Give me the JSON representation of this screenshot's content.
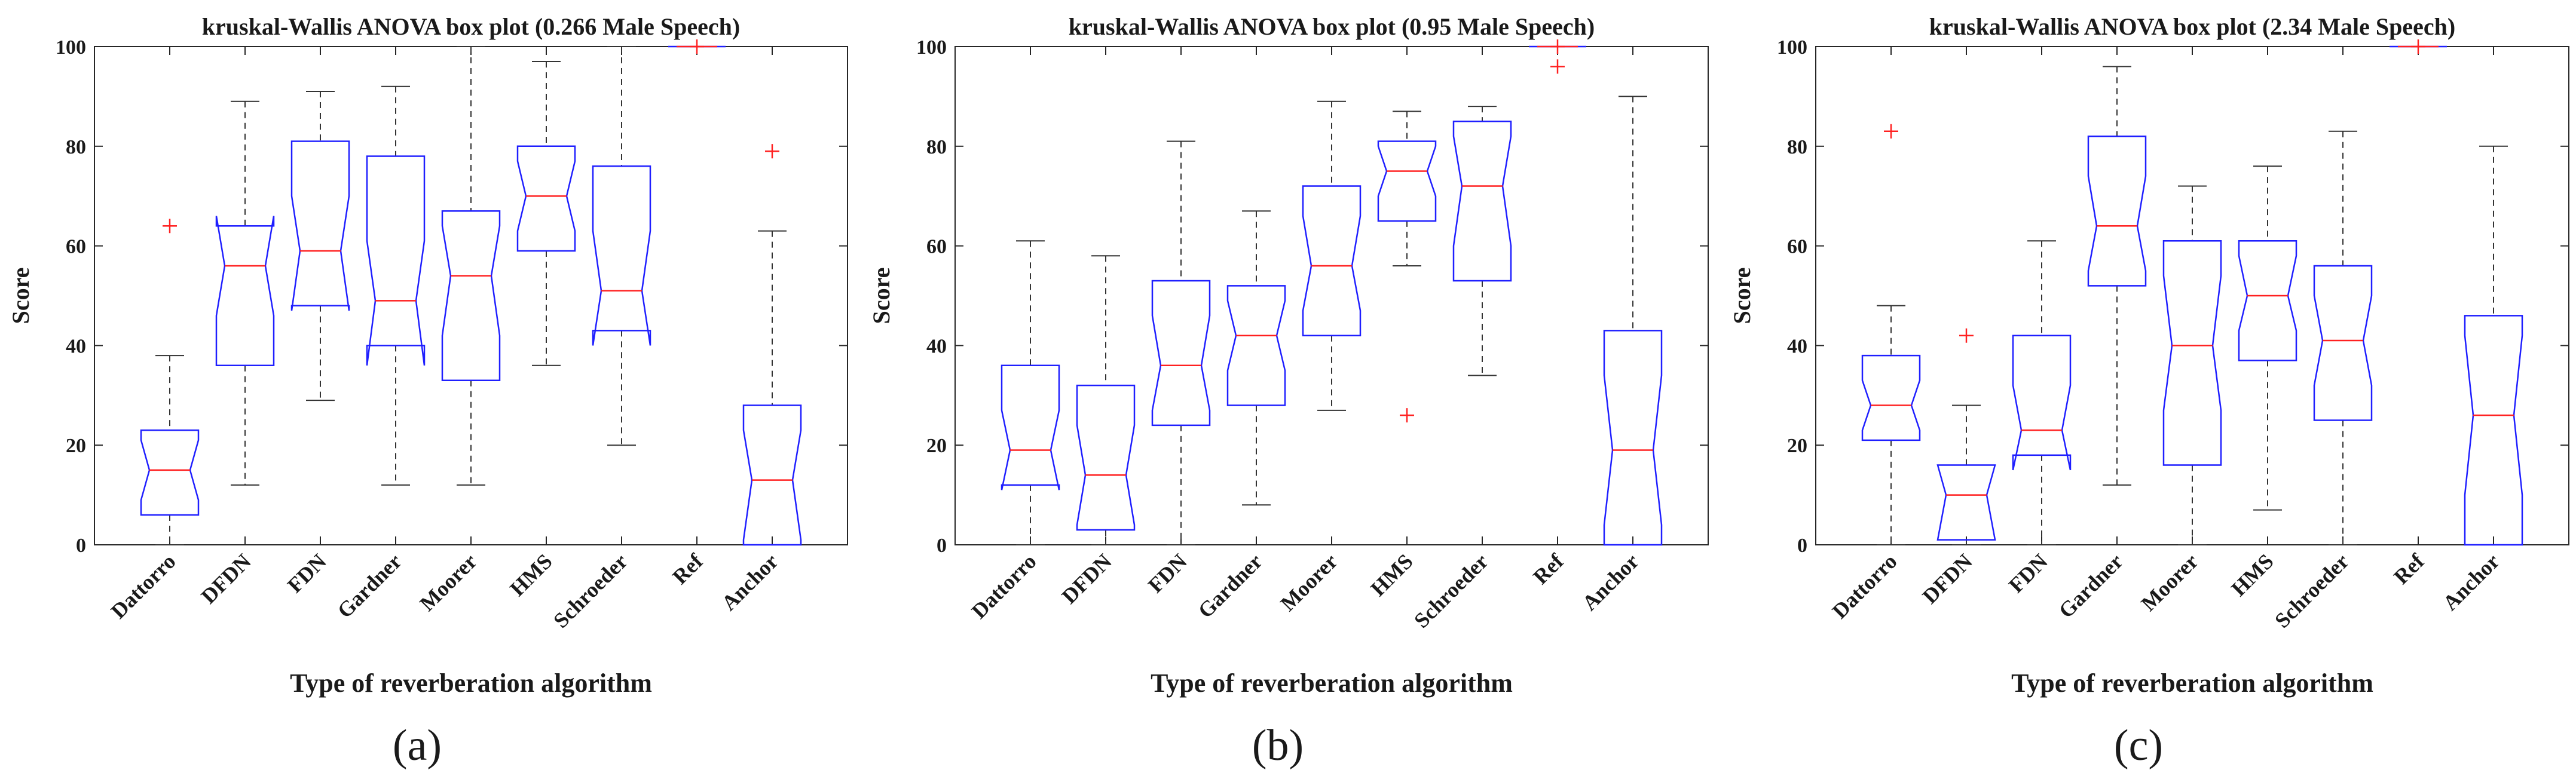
{
  "chart_data": [
    {
      "type": "box",
      "panel_label": "(a)",
      "title": "kruskal-Wallis ANOVA box plot (0.266 Male Speech)",
      "xlabel": "Type of reverberation algorithm",
      "ylabel": "Score",
      "ylim": [
        0,
        100
      ],
      "yticks": [
        "0",
        "20",
        "40",
        "60",
        "80",
        "100"
      ],
      "categories": [
        "Dattorro",
        "DFDN",
        "FDN",
        "Gardner",
        "Moorer",
        "HMS",
        "Schroeder",
        "Ref",
        "Anchor"
      ],
      "boxes": [
        {
          "whisker_low": 0,
          "q1": 6,
          "median": 15,
          "q3": 23,
          "whisker_high": 38,
          "notch_low": 9,
          "notch_high": 21,
          "outliers": [
            64
          ]
        },
        {
          "whisker_low": 12,
          "q1": 36,
          "median": 56,
          "q3": 64,
          "whisker_high": 89,
          "notch_low": 46,
          "notch_high": 66,
          "outliers": []
        },
        {
          "whisker_low": 29,
          "q1": 48,
          "median": 59,
          "q3": 81,
          "whisker_high": 91,
          "notch_low": 47,
          "notch_high": 70,
          "outliers": []
        },
        {
          "whisker_low": 12,
          "q1": 40,
          "median": 49,
          "q3": 78,
          "whisker_high": 92,
          "notch_low": 36,
          "notch_high": 61,
          "outliers": []
        },
        {
          "whisker_low": 12,
          "q1": 33,
          "median": 54,
          "q3": 67,
          "whisker_high": 100,
          "notch_low": 42,
          "notch_high": 64,
          "outliers": []
        },
        {
          "whisker_low": 36,
          "q1": 59,
          "median": 70,
          "q3": 80,
          "whisker_high": 97,
          "notch_low": 63,
          "notch_high": 77,
          "outliers": []
        },
        {
          "whisker_low": 20,
          "q1": 43,
          "median": 51,
          "q3": 76,
          "whisker_high": 100,
          "notch_low": 40,
          "notch_high": 63,
          "outliers": []
        },
        {
          "whisker_low": 100,
          "q1": 100,
          "median": 100,
          "q3": 100,
          "whisker_high": 100,
          "notch_low": 100,
          "notch_high": 100,
          "outliers": [
            100
          ]
        },
        {
          "whisker_low": 0,
          "q1": 0,
          "median": 13,
          "q3": 28,
          "whisker_high": 63,
          "notch_low": 1,
          "notch_high": 23,
          "outliers": [
            79
          ]
        }
      ]
    },
    {
      "type": "box",
      "panel_label": "(b)",
      "title": "kruskal-Wallis ANOVA box plot (0.95 Male Speech)",
      "xlabel": "Type of reverberation algorithm",
      "ylabel": "Score",
      "ylim": [
        0,
        100
      ],
      "yticks": [
        "0",
        "20",
        "40",
        "60",
        "80",
        "100"
      ],
      "categories": [
        "Dattorro",
        "DFDN",
        "FDN",
        "Gardner",
        "Moorer",
        "HMS",
        "Schroeder",
        "Ref",
        "Anchor"
      ],
      "boxes": [
        {
          "whisker_low": 0,
          "q1": 12,
          "median": 19,
          "q3": 36,
          "whisker_high": 61,
          "notch_low": 11,
          "notch_high": 27,
          "outliers": []
        },
        {
          "whisker_low": 0,
          "q1": 3,
          "median": 14,
          "q3": 32,
          "whisker_high": 58,
          "notch_low": 4,
          "notch_high": 24,
          "outliers": []
        },
        {
          "whisker_low": 0,
          "q1": 24,
          "median": 36,
          "q3": 53,
          "whisker_high": 81,
          "notch_low": 27,
          "notch_high": 46,
          "outliers": []
        },
        {
          "whisker_low": 8,
          "q1": 28,
          "median": 42,
          "q3": 52,
          "whisker_high": 67,
          "notch_low": 35,
          "notch_high": 49,
          "outliers": []
        },
        {
          "whisker_low": 27,
          "q1": 42,
          "median": 56,
          "q3": 72,
          "whisker_high": 89,
          "notch_low": 47,
          "notch_high": 66,
          "outliers": []
        },
        {
          "whisker_low": 56,
          "q1": 65,
          "median": 75,
          "q3": 81,
          "whisker_high": 87,
          "notch_low": 70,
          "notch_high": 80,
          "outliers": [
            26
          ]
        },
        {
          "whisker_low": 34,
          "q1": 53,
          "median": 72,
          "q3": 85,
          "whisker_high": 88,
          "notch_low": 60,
          "notch_high": 82,
          "outliers": []
        },
        {
          "whisker_low": 100,
          "q1": 100,
          "median": 100,
          "q3": 100,
          "whisker_high": 100,
          "notch_low": 100,
          "notch_high": 100,
          "outliers": [
            96,
            100
          ]
        },
        {
          "whisker_low": 0,
          "q1": 0,
          "median": 19,
          "q3": 43,
          "whisker_high": 90,
          "notch_low": 4,
          "notch_high": 34,
          "outliers": []
        }
      ]
    },
    {
      "type": "box",
      "panel_label": "(c)",
      "title": "kruskal-Wallis ANOVA box plot (2.34 Male Speech)",
      "xlabel": "Type of reverberation algorithm",
      "ylabel": "Score",
      "ylim": [
        0,
        100
      ],
      "yticks": [
        "0",
        "20",
        "40",
        "60",
        "80",
        "100"
      ],
      "categories": [
        "Dattorro",
        "DFDN",
        "FDN",
        "Gardner",
        "Moorer",
        "HMS",
        "Schroeder",
        "Ref",
        "Anchor"
      ],
      "boxes": [
        {
          "whisker_low": 0,
          "q1": 21,
          "median": 28,
          "q3": 38,
          "whisker_high": 48,
          "notch_low": 23,
          "notch_high": 33,
          "outliers": [
            83
          ]
        },
        {
          "whisker_low": 0,
          "q1": 1,
          "median": 10,
          "q3": 16,
          "whisker_high": 28,
          "notch_low": 1,
          "notch_high": 16,
          "outliers": [
            42
          ]
        },
        {
          "whisker_low": 0,
          "q1": 18,
          "median": 23,
          "q3": 42,
          "whisker_high": 61,
          "notch_low": 15,
          "notch_high": 32,
          "outliers": []
        },
        {
          "whisker_low": 12,
          "q1": 52,
          "median": 64,
          "q3": 82,
          "whisker_high": 96,
          "notch_low": 55,
          "notch_high": 74,
          "outliers": []
        },
        {
          "whisker_low": 0,
          "q1": 16,
          "median": 40,
          "q3": 61,
          "whisker_high": 72,
          "notch_low": 27,
          "notch_high": 54,
          "outliers": []
        },
        {
          "whisker_low": 7,
          "q1": 37,
          "median": 50,
          "q3": 61,
          "whisker_high": 76,
          "notch_low": 43,
          "notch_high": 58,
          "outliers": []
        },
        {
          "whisker_low": 0,
          "q1": 25,
          "median": 41,
          "q3": 56,
          "whisker_high": 83,
          "notch_low": 32,
          "notch_high": 50,
          "outliers": []
        },
        {
          "whisker_low": 100,
          "q1": 100,
          "median": 100,
          "q3": 100,
          "whisker_high": 100,
          "notch_low": 100,
          "notch_high": 100,
          "outliers": [
            100
          ]
        },
        {
          "whisker_low": 0,
          "q1": 0,
          "median": 26,
          "q3": 46,
          "whisker_high": 80,
          "notch_low": 10,
          "notch_high": 42,
          "outliers": []
        }
      ]
    }
  ],
  "colors": {
    "box": "#1f1fff",
    "median": "#ff2020",
    "outlier": "#ff2020",
    "whisker": "#333333",
    "axis": "#262626",
    "text": "#1a1a1a"
  }
}
